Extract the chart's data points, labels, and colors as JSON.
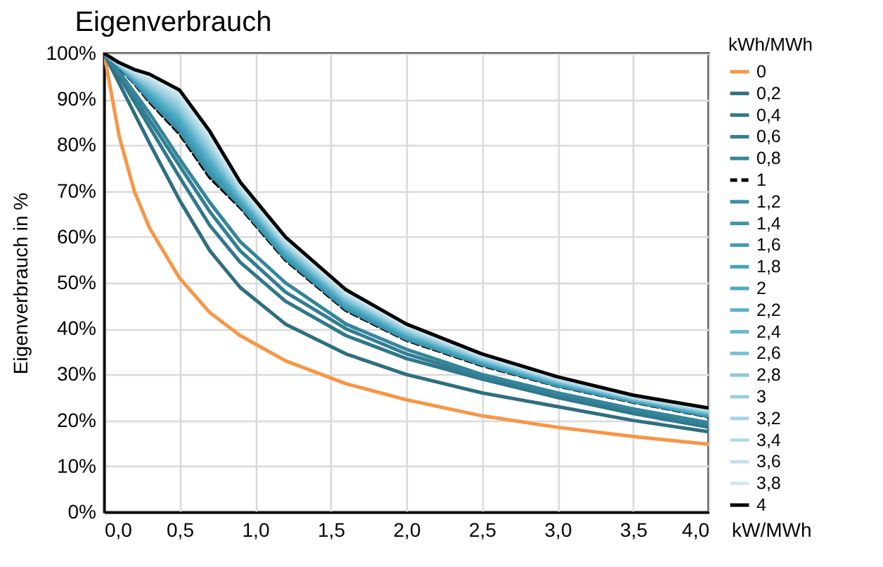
{
  "chart_data": {
    "type": "line",
    "title": "Eigenverbrauch",
    "xlabel": "kW/MWh",
    "ylabel": "Eigenverbrauch in %",
    "legend_title": "kWh/MWh",
    "x": [
      0,
      0.1,
      0.2,
      0.3,
      0.5,
      0.7,
      0.9,
      1.2,
      1.6,
      2.0,
      2.5,
      3.0,
      3.5,
      4.0
    ],
    "xlim": [
      0,
      4
    ],
    "xticks": [
      {
        "value": 0,
        "label": "0,0"
      },
      {
        "value": 0.5,
        "label": "0,5"
      },
      {
        "value": 1,
        "label": "1,0"
      },
      {
        "value": 1.5,
        "label": "1,5"
      },
      {
        "value": 2,
        "label": "2,0"
      },
      {
        "value": 2.5,
        "label": "2,5"
      },
      {
        "value": 3,
        "label": "3,0"
      },
      {
        "value": 3.5,
        "label": "3,5"
      },
      {
        "value": 4,
        "label": "4,0"
      }
    ],
    "ylim": [
      0,
      100
    ],
    "yticks": [
      {
        "value": 0,
        "label": "0%"
      },
      {
        "value": 10,
        "label": "10%"
      },
      {
        "value": 20,
        "label": "20%"
      },
      {
        "value": 30,
        "label": "30%"
      },
      {
        "value": 40,
        "label": "40%"
      },
      {
        "value": 50,
        "label": "50%"
      },
      {
        "value": 60,
        "label": "60%"
      },
      {
        "value": 70,
        "label": "70%"
      },
      {
        "value": 80,
        "label": "80%"
      },
      {
        "value": 90,
        "label": "90%"
      },
      {
        "value": 100,
        "label": "100%"
      }
    ],
    "grid": true,
    "legend": "right",
    "series": [
      {
        "name": "0",
        "color": "#f79646",
        "values": [
          100,
          82,
          70,
          62,
          51,
          43.5,
          38.5,
          33,
          28,
          24.5,
          21,
          18.5,
          16.5,
          14.8
        ]
      },
      {
        "name": "0,2",
        "color": "#2e6e80",
        "values": [
          100,
          93.5,
          87,
          80.5,
          68,
          57,
          49,
          41,
          34.5,
          30,
          26,
          23,
          20,
          17.5
        ]
      },
      {
        "name": "0,4",
        "color": "#30778b",
        "values": [
          100,
          95,
          89.5,
          84,
          73,
          62.5,
          54.5,
          46,
          38.5,
          33.5,
          29,
          25,
          21.5,
          18.5
        ]
      },
      {
        "name": "0,6",
        "color": "#327e93",
        "values": [
          100,
          95.5,
          90.5,
          85.5,
          75.5,
          65.5,
          57,
          48,
          40,
          34.5,
          29.5,
          25.5,
          22,
          19
        ]
      },
      {
        "name": "0,8",
        "color": "#35859b",
        "values": [
          100,
          96,
          91.5,
          87,
          77,
          67.5,
          59,
          50,
          41,
          35.5,
          30,
          26,
          22.5,
          19.5
        ]
      },
      {
        "name": "1",
        "color": "#000000",
        "line_style": "dashed",
        "values": [
          100,
          97,
          93.5,
          89.5,
          82.5,
          73,
          66.5,
          55,
          44,
          37.5,
          32,
          27.5,
          24,
          20.8
        ]
      },
      {
        "name": "1,2",
        "color": "#388ea6",
        "values": [
          100,
          97.1,
          93.7,
          89.9,
          83.1,
          73.7,
          66.9,
          55.3,
          44.3,
          37.7,
          32.2,
          27.6,
          24.1,
          20.9
        ]
      },
      {
        "name": "1,4",
        "color": "#3b95ae",
        "values": [
          100,
          97.1,
          93.9,
          90.3,
          83.8,
          74.3,
          67.2,
          55.7,
          44.6,
          38.0,
          32.3,
          27.8,
          24.2,
          21.1
        ]
      },
      {
        "name": "1,6",
        "color": "#3f9cb6",
        "values": [
          100,
          97.2,
          94.1,
          90.7,
          84.4,
          75,
          67.6,
          56,
          44.9,
          38.2,
          32.5,
          27.9,
          24.3,
          21.2
        ]
      },
      {
        "name": "1,8",
        "color": "#44a3bd",
        "values": [
          100,
          97.3,
          94.3,
          91.1,
          85,
          75.7,
          68,
          56.3,
          45.2,
          38.4,
          32.7,
          28,
          24.4,
          21.3
        ]
      },
      {
        "name": "2",
        "color": "#4aa9c3",
        "values": [
          100,
          97.3,
          94.5,
          91.5,
          85.7,
          76.3,
          68.3,
          56.7,
          45.5,
          38.7,
          32.8,
          28.2,
          24.5,
          21.4
        ]
      },
      {
        "name": "2,2",
        "color": "#59b0c8",
        "values": [
          100,
          97.4,
          94.7,
          91.9,
          86.3,
          77,
          68.7,
          57,
          45.8,
          38.9,
          33,
          28.3,
          24.6,
          21.6
        ]
      },
      {
        "name": "2,4",
        "color": "#69b8ce",
        "values": [
          100,
          97.5,
          94.9,
          92.3,
          86.9,
          77.7,
          69.1,
          57.3,
          46.1,
          39.1,
          33.2,
          28.4,
          24.7,
          21.7
        ]
      },
      {
        "name": "2,6",
        "color": "#7abfd4",
        "values": [
          100,
          97.5,
          95.1,
          92.7,
          87.6,
          78.3,
          69.4,
          57.7,
          46.4,
          39.4,
          33.3,
          28.6,
          24.8,
          21.8
        ]
      },
      {
        "name": "2,8",
        "color": "#8ac7d9",
        "values": [
          100,
          97.6,
          95.3,
          93.1,
          88.2,
          79,
          69.8,
          58,
          46.7,
          39.6,
          33.5,
          28.7,
          24.9,
          21.9
        ]
      },
      {
        "name": "3",
        "color": "#99cede",
        "values": [
          100,
          97.7,
          95.5,
          93.5,
          88.8,
          79.7,
          70.2,
          58.3,
          47,
          39.8,
          33.7,
          28.8,
          25,
          22.1
        ]
      },
      {
        "name": "3,2",
        "color": "#a7d5e3",
        "values": [
          100,
          97.7,
          95.7,
          93.9,
          89.5,
          80.3,
          70.5,
          58.7,
          47.3,
          40.1,
          33.8,
          29,
          25.1,
          22.2
        ]
      },
      {
        "name": "3,4",
        "color": "#b5dbe7",
        "values": [
          100,
          97.8,
          95.9,
          94.3,
          90.1,
          81,
          70.9,
          59,
          47.6,
          40.3,
          34,
          29.1,
          25.2,
          22.3
        ]
      },
      {
        "name": "3,6",
        "color": "#c3e2ec",
        "values": [
          100,
          97.9,
          96.1,
          94.7,
          90.7,
          81.7,
          71.3,
          59.3,
          47.9,
          40.5,
          34.2,
          29.2,
          25.3,
          22.5
        ]
      },
      {
        "name": "3,8",
        "color": "#d1e9f0",
        "values": [
          100,
          97.9,
          96.3,
          95.1,
          91.4,
          82.3,
          71.6,
          59.7,
          48.2,
          40.8,
          34.3,
          29.4,
          25.4,
          22.6
        ]
      },
      {
        "name": "4",
        "color": "#000000",
        "values": [
          100,
          98,
          96.5,
          95.5,
          92,
          83,
          72,
          60,
          48.5,
          41,
          34.5,
          29.5,
          25.5,
          22.7
        ]
      }
    ]
  }
}
